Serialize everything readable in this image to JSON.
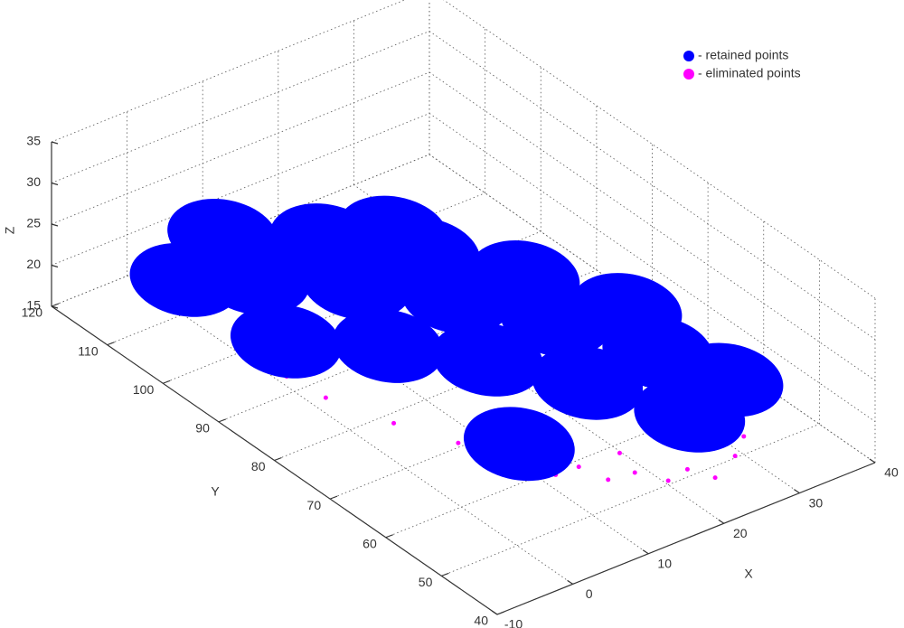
{
  "chart_data": {
    "type": "scatter3d",
    "xlabel": "X",
    "ylabel": "Y",
    "zlabel": "Z",
    "xlim": [
      -10,
      40
    ],
    "ylim": [
      40,
      120
    ],
    "zlim": [
      15,
      35
    ],
    "xticks": [
      -10,
      0,
      10,
      20,
      30,
      40
    ],
    "yticks": [
      40,
      50,
      60,
      70,
      80,
      90,
      100,
      110,
      120
    ],
    "zticks": [
      15,
      20,
      25,
      30,
      35
    ],
    "grid": true,
    "legend": "top-right",
    "series": [
      {
        "name": "- eliminated points",
        "color": "#ff00ff",
        "x": [
          -2.3,
          -0.1,
          2.7,
          6.0,
          9.5,
          13.4,
          17.5,
          22.1,
          27.3,
          15,
          20,
          11,
          24,
          7,
          30,
          35,
          18,
          12,
          -1
        ],
        "y": [
          94.3,
          84.2,
          75.8,
          68.7,
          62.5,
          57.1,
          52.6,
          49.4,
          47.9,
          54,
          50,
          58,
          47,
          64,
          50,
          55,
          56,
          62,
          90
        ],
        "z": [
          17.5,
          17,
          16.8,
          16.5,
          16.3,
          16.3,
          16.2,
          16.4,
          16.8,
          15.6,
          15.5,
          15.8,
          15.8,
          16,
          17.2,
          18,
          16.8,
          17.2,
          17.2
        ]
      },
      {
        "name": "- retained points",
        "color": "#0000ff",
        "x": [
          0.4,
          4.6,
          10.9,
          17,
          23.1,
          29.4,
          33.7,
          8.4,
          14.7,
          20.8,
          26.9,
          33.2,
          0.9,
          7.2,
          13.3,
          19.4,
          25.7,
          24.5,
          9.5
        ],
        "y": [
          110.1,
          103.4,
          93.6,
          84,
          74.4,
          64.6,
          57.9,
          114.2,
          104.4,
          94.8,
          85.2,
          75.4,
          92.7,
          82.9,
          73.3,
          63.7,
          53.9,
          105.5,
          62.5
        ],
        "z": [
          19.0,
          20.8,
          22.5,
          23,
          22.5,
          20.8,
          19.0,
          19.5,
          21.2,
          21.8,
          21.2,
          19.5,
          19.5,
          21.2,
          21.8,
          21.2,
          19.5,
          18.0,
          18.0
        ]
      }
    ]
  }
}
